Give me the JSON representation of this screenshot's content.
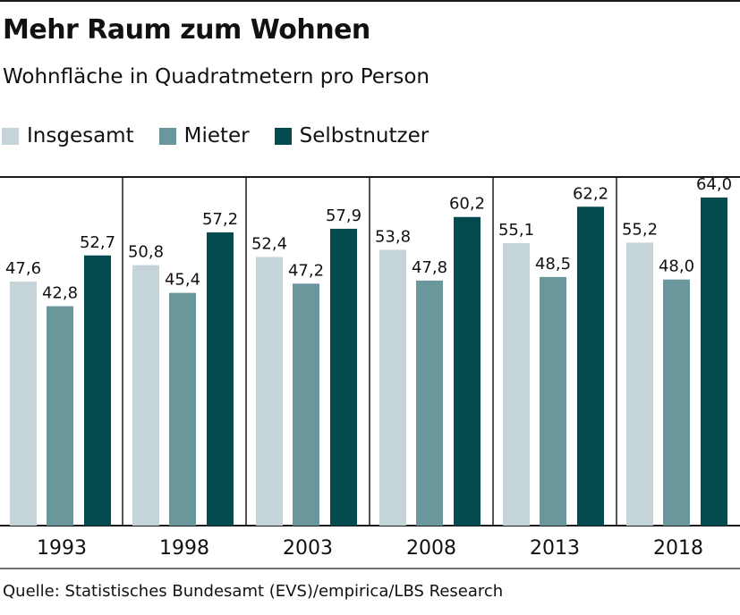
{
  "title": "Mehr Raum zum Wohnen",
  "subtitle": "Wohnfläche in Quadratmetern pro Person",
  "source": "Quelle: Statistisches Bundesamt (EVS)/empirica/LBS Research",
  "legend": [
    {
      "label": "Insgesamt",
      "color": "#c4d4d8"
    },
    {
      "label": "Mieter",
      "color": "#6a979c"
    },
    {
      "label": "Selbstnutzer",
      "color": "#044a4e"
    }
  ],
  "chart_data": {
    "type": "bar",
    "categories": [
      "1993",
      "1998",
      "2003",
      "2008",
      "2013",
      "2018"
    ],
    "series": [
      {
        "name": "Insgesamt",
        "color": "#c4d4d8",
        "values": [
          47.6,
          50.8,
          52.4,
          53.8,
          55.1,
          55.2
        ],
        "labels": [
          "47,6",
          "50,8",
          "52,4",
          "53,8",
          "55,1",
          "55,2"
        ]
      },
      {
        "name": "Mieter",
        "color": "#6a979c",
        "values": [
          42.8,
          45.4,
          47.2,
          47.8,
          48.5,
          48.0
        ],
        "labels": [
          "42,8",
          "45,4",
          "47,2",
          "47,8",
          "48,5",
          "48,0"
        ]
      },
      {
        "name": "Selbstnutzer",
        "color": "#044a4e",
        "values": [
          52.7,
          57.2,
          57.9,
          60.2,
          62.2,
          64.0
        ],
        "labels": [
          "52,7",
          "57,2",
          "57,9",
          "60,2",
          "62,2",
          "64,0"
        ]
      }
    ],
    "title": "Mehr Raum zum Wohnen",
    "subtitle": "Wohnfläche in Quadratmetern pro Person",
    "xlabel": "",
    "ylabel": "",
    "ylim": [
      0,
      68
    ],
    "grid": false,
    "legend_position": "top-left"
  }
}
